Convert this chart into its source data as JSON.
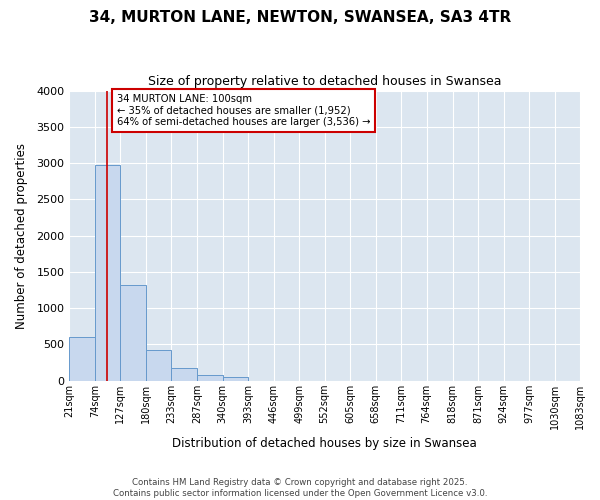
{
  "title1": "34, MURTON LANE, NEWTON, SWANSEA, SA3 4TR",
  "title2": "Size of property relative to detached houses in Swansea",
  "xlabel": "Distribution of detached houses by size in Swansea",
  "ylabel": "Number of detached properties",
  "bins": [
    "21sqm",
    "74sqm",
    "127sqm",
    "180sqm",
    "233sqm",
    "287sqm",
    "340sqm",
    "393sqm",
    "446sqm",
    "499sqm",
    "552sqm",
    "605sqm",
    "658sqm",
    "711sqm",
    "764sqm",
    "818sqm",
    "871sqm",
    "924sqm",
    "977sqm",
    "1030sqm",
    "1083sqm"
  ],
  "bin_edges": [
    21,
    74,
    127,
    180,
    233,
    287,
    340,
    393,
    446,
    499,
    552,
    605,
    658,
    711,
    764,
    818,
    871,
    924,
    977,
    1030,
    1083
  ],
  "values": [
    600,
    2975,
    1325,
    420,
    175,
    80,
    45,
    0,
    0,
    0,
    0,
    0,
    0,
    0,
    0,
    0,
    0,
    0,
    0,
    0
  ],
  "bar_color": "#c8d8ee",
  "bar_edge_color": "#6699cc",
  "plot_bg_color": "#dce6f0",
  "grid_color": "#ffffff",
  "fig_bg_color": "#ffffff",
  "vline_x": 100,
  "vline_color": "#cc0000",
  "annotation_line1": "34 MURTON LANE: 100sqm",
  "annotation_line2": "← 35% of detached houses are smaller (1,952)",
  "annotation_line3": "64% of semi-detached houses are larger (3,536) →",
  "annotation_box_color": "#cc0000",
  "ylim": [
    0,
    4000
  ],
  "yticks": [
    0,
    500,
    1000,
    1500,
    2000,
    2500,
    3000,
    3500,
    4000
  ],
  "footer1": "Contains HM Land Registry data © Crown copyright and database right 2025.",
  "footer2": "Contains public sector information licensed under the Open Government Licence v3.0."
}
